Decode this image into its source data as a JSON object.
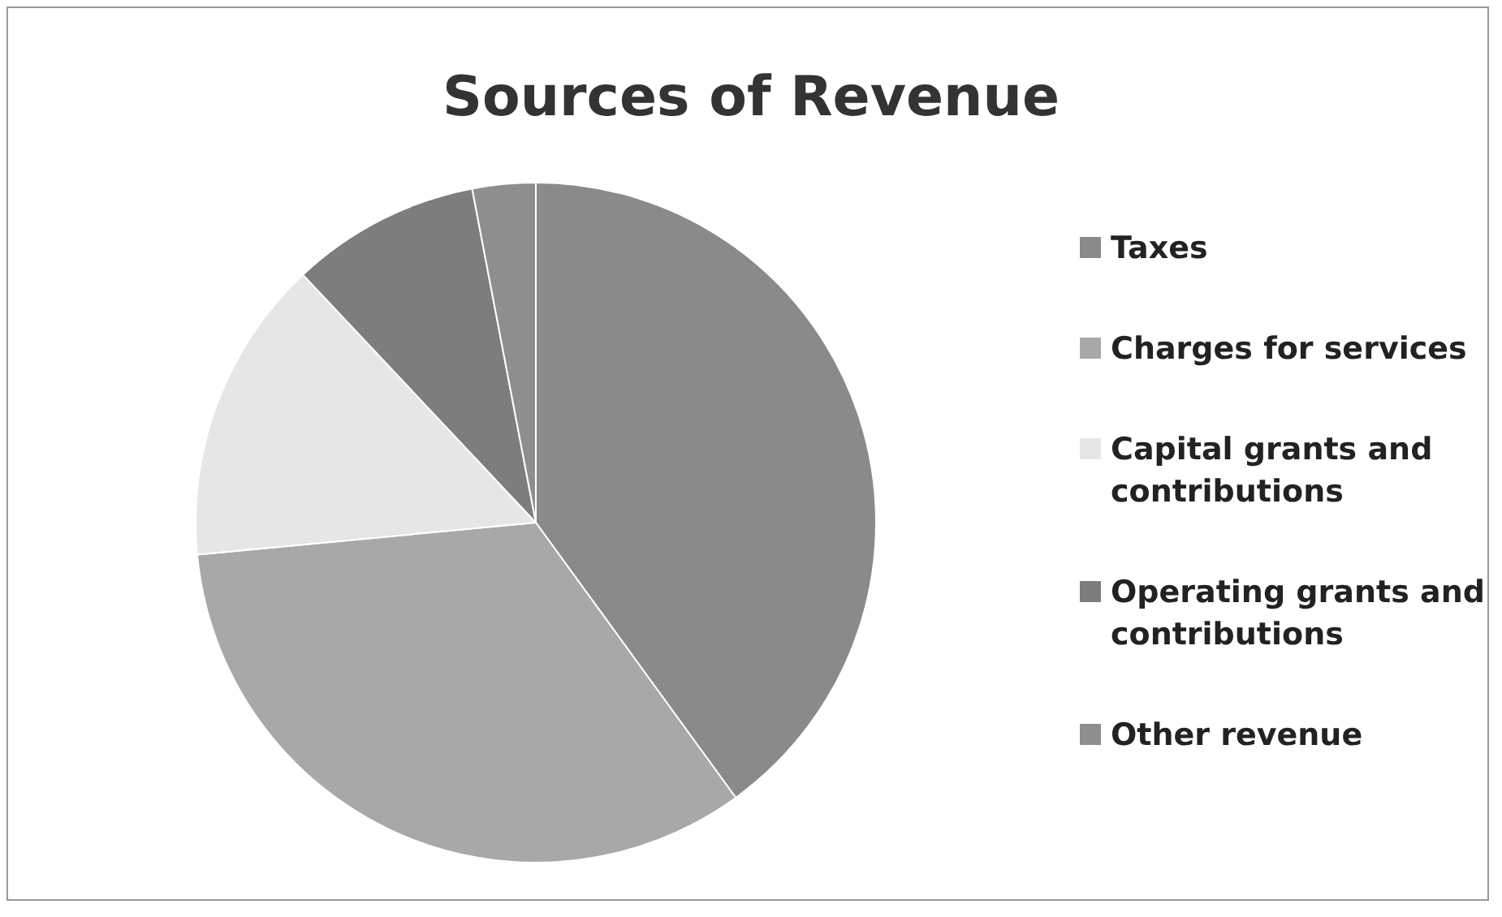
{
  "chart_data": {
    "type": "pie",
    "title": "Sources of Revenue",
    "categories": [
      "Taxes",
      "Charges for services",
      "Capital grants and contributions",
      "Operating grants and contributions",
      "Other revenue"
    ],
    "values": [
      40,
      33.5,
      14.5,
      9,
      3
    ],
    "colors": [
      "#8a8a8a",
      "#a8a8a8",
      "#e6e6e6",
      "#7d7d7d",
      "#8e8e8e"
    ],
    "legend": "right"
  }
}
